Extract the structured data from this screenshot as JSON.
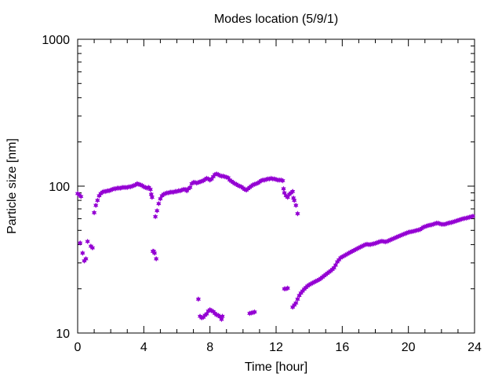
{
  "chart_data": {
    "type": "scatter",
    "title": "Modes location (5/9/1)",
    "xlabel": "Time [hour]",
    "ylabel": "Particle size [nm]",
    "xlim": [
      0,
      24
    ],
    "ylim": [
      10,
      1000
    ],
    "yscale": "log",
    "grid": false,
    "legend": "none",
    "xticks": [
      0,
      4,
      8,
      12,
      16,
      20,
      24
    ],
    "xtick_labels": [
      "0",
      "4",
      "8",
      "12",
      "16",
      "20",
      "24"
    ],
    "yticks": [
      10,
      100,
      1000
    ],
    "ytick_labels": [
      "10",
      "100",
      "1000"
    ],
    "marker": "star",
    "color": "#9400d3",
    "series": [
      {
        "points": [
          [
            0.0,
            89
          ],
          [
            0.1,
            87
          ],
          [
            0.2,
            85
          ],
          [
            0.15,
            41
          ],
          [
            0.3,
            35
          ],
          [
            0.4,
            31
          ],
          [
            0.5,
            32
          ],
          [
            0.6,
            42
          ],
          [
            0.8,
            39
          ],
          [
            0.9,
            38
          ],
          [
            1.0,
            66
          ],
          [
            1.1,
            74
          ],
          [
            1.2,
            80
          ],
          [
            1.3,
            86
          ],
          [
            1.4,
            89
          ],
          [
            1.5,
            91
          ],
          [
            1.6,
            92
          ],
          [
            1.7,
            92
          ],
          [
            1.8,
            93
          ],
          [
            1.9,
            93
          ],
          [
            2.0,
            94
          ],
          [
            2.1,
            95
          ],
          [
            2.2,
            96
          ],
          [
            2.3,
            96
          ],
          [
            2.4,
            97
          ],
          [
            2.5,
            97
          ],
          [
            2.6,
            97
          ],
          [
            2.7,
            98
          ],
          [
            2.8,
            98
          ],
          [
            2.9,
            98
          ],
          [
            3.0,
            98
          ],
          [
            3.1,
            99
          ],
          [
            3.2,
            99
          ],
          [
            3.3,
            100
          ],
          [
            3.4,
            101
          ],
          [
            3.5,
            102
          ],
          [
            3.6,
            104
          ],
          [
            3.7,
            103
          ],
          [
            3.8,
            102
          ],
          [
            3.9,
            101
          ],
          [
            4.0,
            99
          ],
          [
            4.1,
            98
          ],
          [
            4.2,
            97
          ],
          [
            4.3,
            98
          ],
          [
            4.4,
            95
          ],
          [
            4.45,
            88
          ],
          [
            4.5,
            84
          ],
          [
            4.55,
            36
          ],
          [
            4.6,
            36
          ],
          [
            4.65,
            35
          ],
          [
            4.75,
            32
          ],
          [
            4.7,
            62
          ],
          [
            4.8,
            68
          ],
          [
            4.9,
            76
          ],
          [
            5.0,
            82
          ],
          [
            5.1,
            86
          ],
          [
            5.2,
            88
          ],
          [
            5.3,
            89
          ],
          [
            5.4,
            90
          ],
          [
            5.5,
            90
          ],
          [
            5.6,
            91
          ],
          [
            5.7,
            91
          ],
          [
            5.8,
            91
          ],
          [
            5.9,
            92
          ],
          [
            6.0,
            92
          ],
          [
            6.1,
            93
          ],
          [
            6.2,
            93
          ],
          [
            6.3,
            94
          ],
          [
            6.4,
            95
          ],
          [
            6.5,
            95
          ],
          [
            6.6,
            93
          ],
          [
            6.7,
            96
          ],
          [
            6.8,
            98
          ],
          [
            6.9,
            104
          ],
          [
            7.0,
            106
          ],
          [
            7.1,
            106
          ],
          [
            7.2,
            105
          ],
          [
            7.3,
            106
          ],
          [
            7.4,
            107
          ],
          [
            7.5,
            108
          ],
          [
            7.6,
            109
          ],
          [
            7.7,
            111
          ],
          [
            7.8,
            113
          ],
          [
            7.9,
            112
          ],
          [
            8.0,
            110
          ],
          [
            8.1,
            112
          ],
          [
            8.2,
            116
          ],
          [
            8.3,
            120
          ],
          [
            8.4,
            121
          ],
          [
            8.5,
            120
          ],
          [
            8.6,
            118
          ],
          [
            8.7,
            117
          ],
          [
            8.8,
            117
          ],
          [
            8.9,
            116
          ],
          [
            9.0,
            115
          ],
          [
            9.1,
            114
          ],
          [
            9.2,
            110
          ],
          [
            9.3,
            108
          ],
          [
            9.4,
            106
          ],
          [
            9.5,
            104
          ],
          [
            9.6,
            103
          ],
          [
            9.7,
            101
          ],
          [
            9.8,
            100
          ],
          [
            9.9,
            99
          ],
          [
            10.0,
            97
          ],
          [
            10.1,
            95
          ],
          [
            10.2,
            94
          ],
          [
            10.3,
            96
          ],
          [
            10.4,
            98
          ],
          [
            10.5,
            100
          ],
          [
            10.6,
            102
          ],
          [
            10.7,
            103
          ],
          [
            10.8,
            104
          ],
          [
            10.9,
            105
          ],
          [
            11.0,
            107
          ],
          [
            11.1,
            109
          ],
          [
            11.2,
            110
          ],
          [
            11.3,
            110
          ],
          [
            11.4,
            111
          ],
          [
            11.5,
            112
          ],
          [
            11.6,
            112
          ],
          [
            11.7,
            113
          ],
          [
            11.8,
            112
          ],
          [
            11.9,
            112
          ],
          [
            12.0,
            111
          ],
          [
            12.1,
            110
          ],
          [
            12.2,
            110
          ],
          [
            12.3,
            110
          ],
          [
            12.4,
            109
          ],
          [
            12.45,
            96
          ],
          [
            12.5,
            90
          ],
          [
            12.6,
            86
          ],
          [
            12.7,
            84
          ],
          [
            12.8,
            88
          ],
          [
            12.9,
            90
          ],
          [
            13.0,
            92
          ],
          [
            13.05,
            83
          ],
          [
            13.1,
            80
          ],
          [
            13.2,
            74
          ],
          [
            13.3,
            65
          ],
          [
            7.3,
            17
          ],
          [
            7.4,
            13
          ],
          [
            7.5,
            12.7
          ],
          [
            7.6,
            12.8
          ],
          [
            7.7,
            13.2
          ],
          [
            7.8,
            13.5
          ],
          [
            7.9,
            14.1
          ],
          [
            8.0,
            14.4
          ],
          [
            8.1,
            14.2
          ],
          [
            8.2,
            14.0
          ],
          [
            8.3,
            13.6
          ],
          [
            8.4,
            13.3
          ],
          [
            8.5,
            13.2
          ],
          [
            8.6,
            12.9
          ],
          [
            8.7,
            12.4
          ],
          [
            8.75,
            13.0
          ],
          [
            10.4,
            13.6
          ],
          [
            10.5,
            13.7
          ],
          [
            10.6,
            13.8
          ],
          [
            10.7,
            13.9
          ],
          [
            12.5,
            20
          ],
          [
            12.6,
            20
          ],
          [
            12.7,
            20.2
          ],
          [
            13.0,
            15.0
          ],
          [
            13.1,
            15.5
          ],
          [
            13.2,
            16.0
          ],
          [
            13.3,
            17.0
          ],
          [
            13.4,
            18.0
          ],
          [
            13.5,
            18.7
          ],
          [
            13.6,
            19.3
          ],
          [
            13.7,
            19.9
          ],
          [
            13.8,
            20.4
          ],
          [
            13.9,
            20.9
          ],
          [
            14.0,
            21.3
          ],
          [
            14.1,
            21.6
          ],
          [
            14.2,
            21.9
          ],
          [
            14.3,
            22.2
          ],
          [
            14.4,
            22.5
          ],
          [
            14.5,
            22.8
          ],
          [
            14.6,
            23.1
          ],
          [
            14.7,
            23.5
          ],
          [
            14.8,
            24.0
          ],
          [
            14.9,
            24.5
          ],
          [
            15.0,
            25.0
          ],
          [
            15.1,
            25.5
          ],
          [
            15.2,
            26.0
          ],
          [
            15.3,
            26.5
          ],
          [
            15.4,
            27.1
          ],
          [
            15.5,
            27.8
          ],
          [
            15.6,
            29.0
          ],
          [
            15.7,
            30.5
          ],
          [
            15.8,
            31.5
          ],
          [
            15.9,
            32.5
          ],
          [
            16.0,
            33.0
          ],
          [
            16.1,
            33.5
          ],
          [
            16.2,
            34.0
          ],
          [
            16.3,
            34.5
          ],
          [
            16.4,
            35.0
          ],
          [
            16.5,
            35.5
          ],
          [
            16.6,
            36.0
          ],
          [
            16.7,
            36.5
          ],
          [
            16.8,
            37.0
          ],
          [
            16.9,
            37.5
          ],
          [
            17.0,
            38.0
          ],
          [
            17.1,
            38.5
          ],
          [
            17.2,
            39.0
          ],
          [
            17.3,
            39.5
          ],
          [
            17.4,
            40.0
          ],
          [
            17.5,
            40.2
          ],
          [
            17.6,
            40.0
          ],
          [
            17.7,
            40.0
          ],
          [
            17.8,
            40.3
          ],
          [
            17.9,
            40.5
          ],
          [
            18.0,
            40.8
          ],
          [
            18.1,
            41.2
          ],
          [
            18.2,
            41.6
          ],
          [
            18.3,
            42.0
          ],
          [
            18.4,
            42.2
          ],
          [
            18.5,
            42.0
          ],
          [
            18.6,
            41.8
          ],
          [
            18.7,
            42.0
          ],
          [
            18.8,
            42.5
          ],
          [
            18.9,
            43.0
          ],
          [
            19.0,
            43.5
          ],
          [
            19.1,
            44.0
          ],
          [
            19.2,
            44.5
          ],
          [
            19.3,
            45.0
          ],
          [
            19.4,
            45.5
          ],
          [
            19.5,
            46.0
          ],
          [
            19.6,
            46.5
          ],
          [
            19.7,
            47.0
          ],
          [
            19.8,
            47.5
          ],
          [
            19.9,
            48.0
          ],
          [
            20.0,
            48.5
          ],
          [
            20.1,
            48.8
          ],
          [
            20.2,
            49.0
          ],
          [
            20.3,
            49.3
          ],
          [
            20.4,
            49.6
          ],
          [
            20.5,
            50.0
          ],
          [
            20.6,
            50.3
          ],
          [
            20.7,
            50.6
          ],
          [
            20.8,
            51.5
          ],
          [
            20.9,
            52.5
          ],
          [
            21.0,
            53.0
          ],
          [
            21.1,
            53.5
          ],
          [
            21.2,
            54.0
          ],
          [
            21.3,
            54.3
          ],
          [
            21.4,
            54.5
          ],
          [
            21.5,
            55.0
          ],
          [
            21.6,
            55.5
          ],
          [
            21.7,
            56.0
          ],
          [
            21.8,
            56.0
          ],
          [
            21.9,
            55.5
          ],
          [
            22.0,
            55.0
          ],
          [
            22.1,
            55.0
          ],
          [
            22.2,
            55.0
          ],
          [
            22.3,
            55.5
          ],
          [
            22.4,
            56.0
          ],
          [
            22.5,
            56.3
          ],
          [
            22.6,
            56.6
          ],
          [
            22.7,
            57.0
          ],
          [
            22.8,
            57.5
          ],
          [
            22.9,
            58.0
          ],
          [
            23.0,
            58.5
          ],
          [
            23.1,
            59.0
          ],
          [
            23.2,
            59.5
          ],
          [
            23.3,
            60.0
          ],
          [
            23.4,
            60.3
          ],
          [
            23.5,
            60.6
          ],
          [
            23.6,
            61.0
          ],
          [
            23.7,
            61.5
          ],
          [
            23.8,
            62.0
          ],
          [
            23.9,
            62.5
          ]
        ]
      }
    ]
  }
}
